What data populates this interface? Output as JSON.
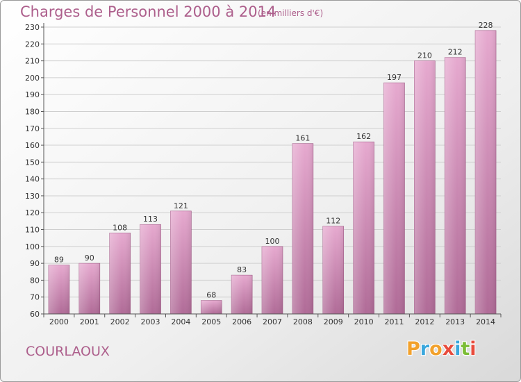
{
  "header": {
    "title": "Charges de Personnel 2000 à 2014",
    "subtitle": "(en milliers d'€)"
  },
  "footer": {
    "place": "COURLAOUX",
    "logo": "Proxiti",
    "logo_colors": [
      "#f2a12c",
      "#3aa7dd",
      "#f2a12c",
      "#e84b3c",
      "#3aa7dd",
      "#7cbd36",
      "#e84b3c"
    ]
  },
  "colors": {
    "bar_top": "#e6a9cf",
    "bar_bottom": "#b06b97",
    "grid": "#cfcfcf",
    "axis": "#555555",
    "text": "#333333",
    "accent": "#ad5f8c"
  },
  "chart_data": {
    "type": "bar",
    "categories": [
      "2000",
      "2001",
      "2002",
      "2003",
      "2004",
      "2005",
      "2006",
      "2007",
      "2008",
      "2009",
      "2010",
      "2011",
      "2012",
      "2013",
      "2014"
    ],
    "values": [
      89,
      90,
      108,
      113,
      121,
      68,
      83,
      100,
      161,
      112,
      162,
      197,
      210,
      212,
      228
    ],
    "ylim": [
      60,
      230
    ],
    "yticks": [
      60,
      70,
      80,
      90,
      100,
      110,
      120,
      130,
      140,
      150,
      160,
      170,
      180,
      190,
      200,
      210,
      220,
      230
    ],
    "grid": true,
    "xlabel": "",
    "ylabel": ""
  }
}
